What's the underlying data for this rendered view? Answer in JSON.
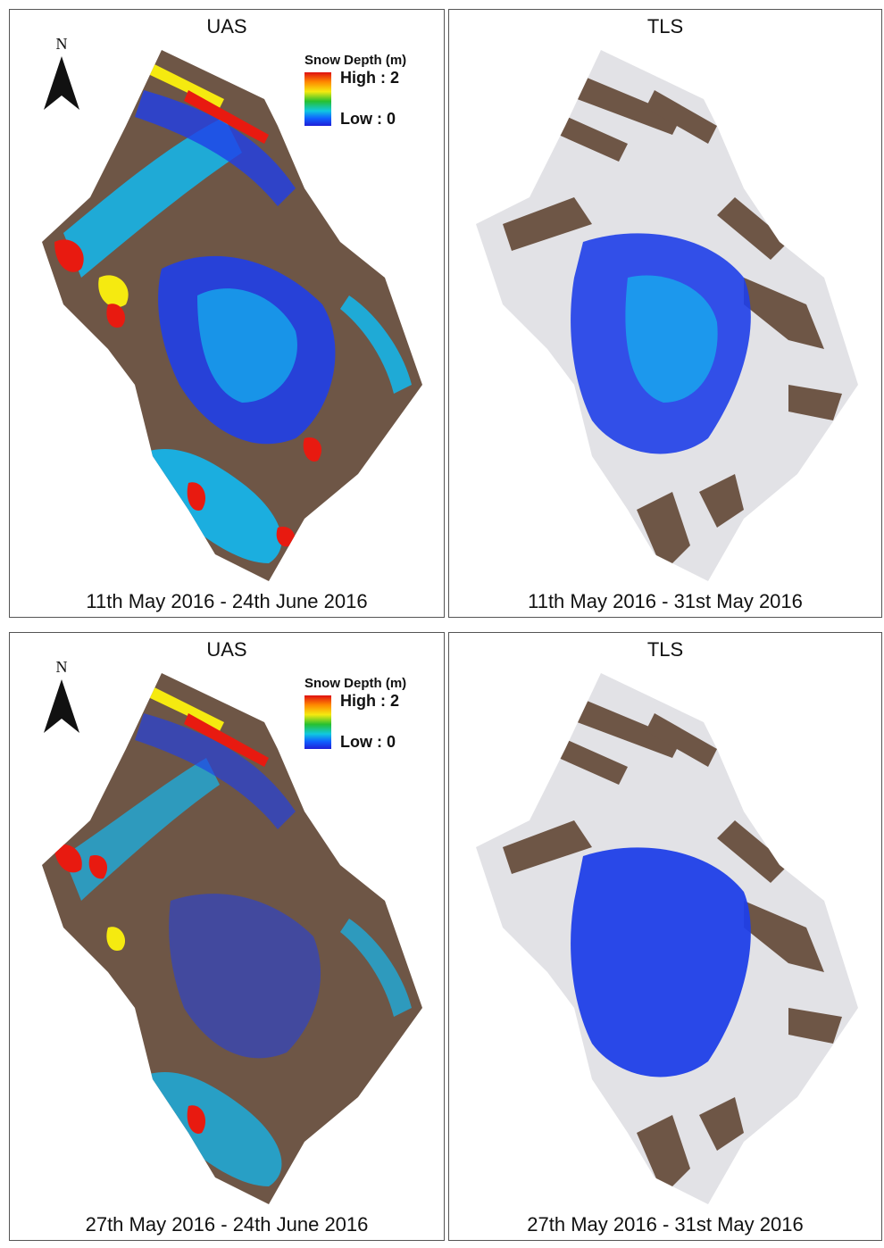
{
  "panels": [
    {
      "title": "UAS",
      "caption": "11th May 2016 - 24th June 2016",
      "kind": "uas"
    },
    {
      "title": "TLS",
      "caption": "11th May 2016 - 31st May 2016",
      "kind": "tls"
    },
    {
      "title": "UAS",
      "caption": "27th May 2016 - 24th June 2016",
      "kind": "uas"
    },
    {
      "title": "TLS",
      "caption": "27th May 2016 - 31st May 2016",
      "kind": "tls"
    }
  ],
  "north_arrow": {
    "label": "N"
  },
  "legend": {
    "title": "Snow Depth (m)",
    "high": "High : 2",
    "low": "Low : 0",
    "colors": [
      "#e01010",
      "#ff8a00",
      "#f5ea10",
      "#27c030",
      "#10c8e0",
      "#1060ff",
      "#1f1fd8"
    ]
  },
  "colors": {
    "terrain": "#6e5646",
    "snow": "#e2e2e6",
    "depth_low": "#1f3fe8",
    "depth_mid": "#12b8f0",
    "depth_high": "#e81a10"
  }
}
